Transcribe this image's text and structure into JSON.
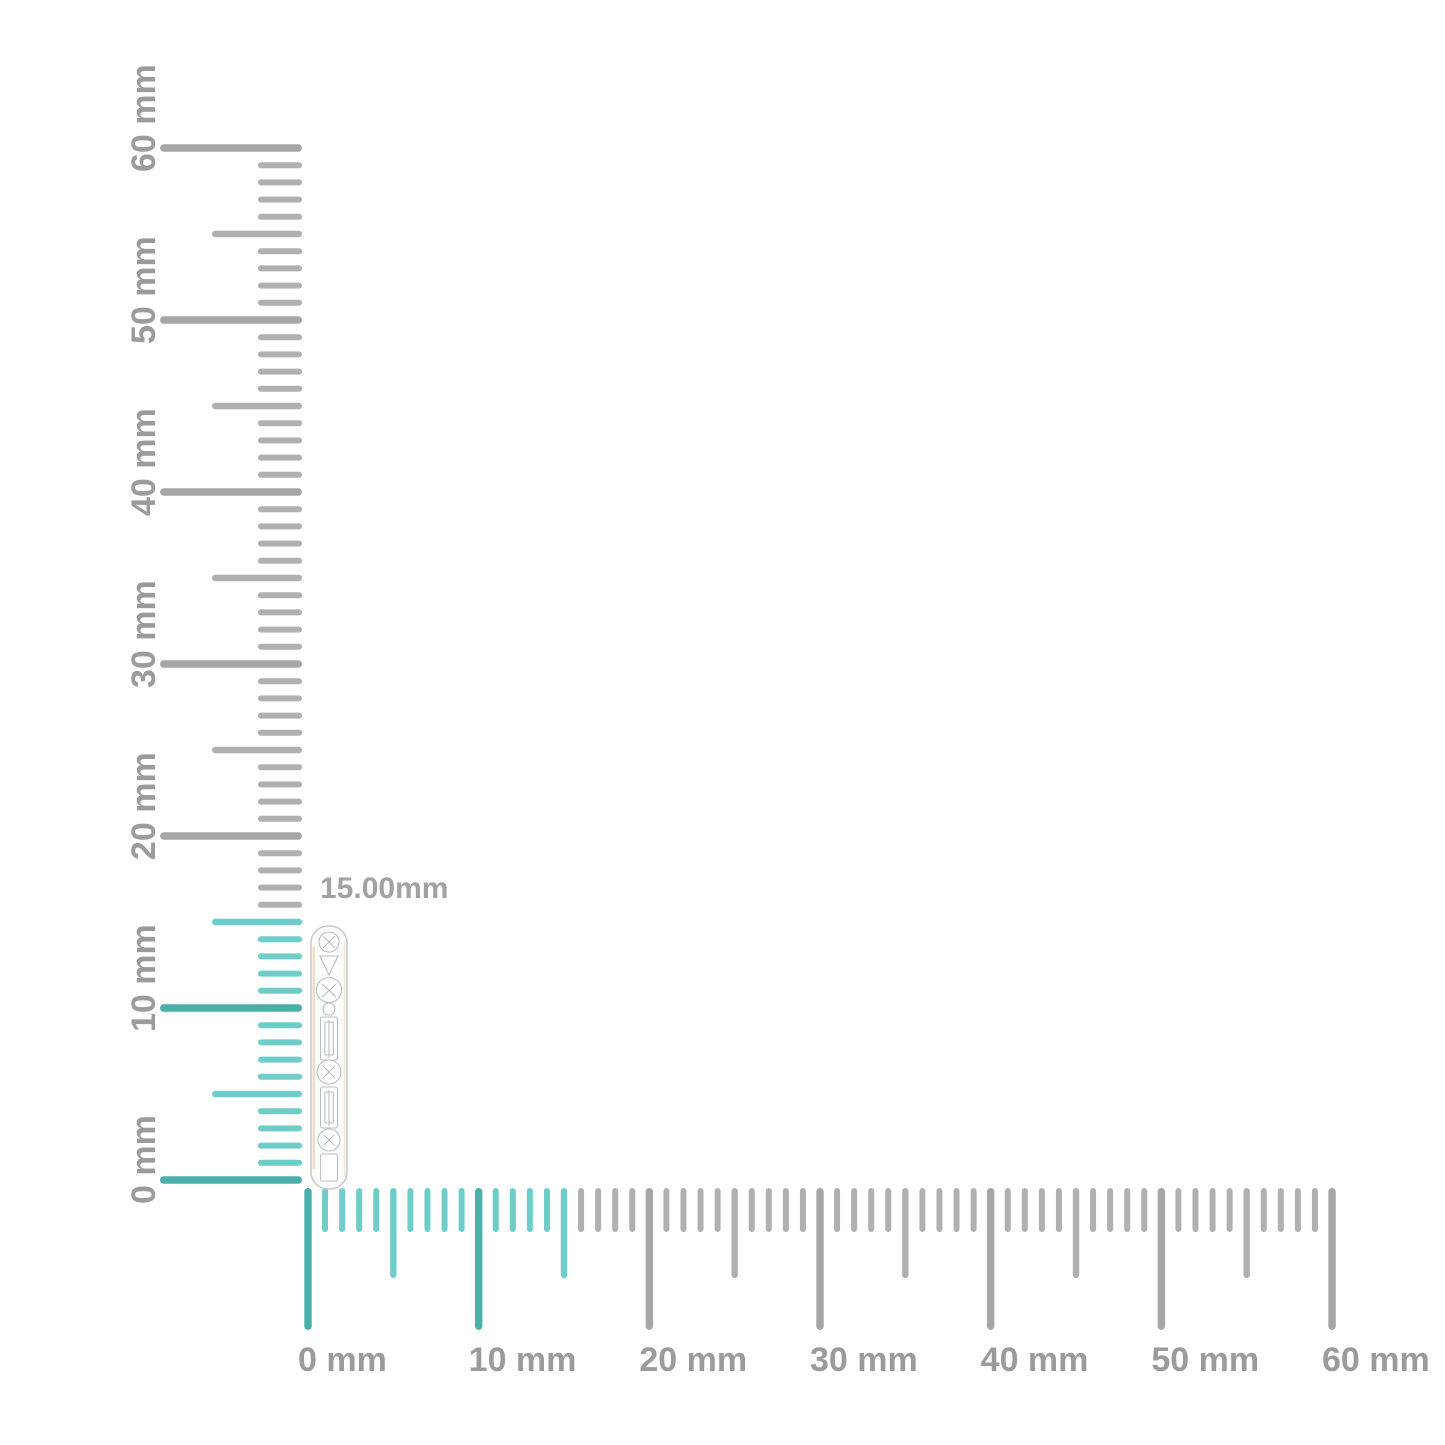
{
  "measurement": {
    "label": "15.00mm"
  },
  "rulers": {
    "vertical": {
      "unit": "mm",
      "min_mm": 0,
      "max_mm": 60,
      "tick_step_mm": 1,
      "mid_step_mm": 5,
      "major_step_mm": 10,
      "labels": [
        "0 mm",
        "10 mm",
        "20 mm",
        "30 mm",
        "40 mm",
        "50 mm",
        "60 mm"
      ],
      "highlight_to_mm": 15
    },
    "horizontal": {
      "unit": "mm",
      "min_mm": 0,
      "max_mm": 60,
      "tick_step_mm": 1,
      "mid_step_mm": 5,
      "major_step_mm": 10,
      "labels": [
        "0 mm",
        "10 mm",
        "20 mm",
        "30 mm",
        "40 mm",
        "50 mm",
        "60 mm"
      ],
      "highlight_to_mm": 15
    }
  },
  "colors": {
    "highlight_major": "#4bafaa",
    "highlight_minor": "#6ecdc8",
    "gray_major": "#a6a6a6",
    "gray_minor": "#b0b0b0",
    "label": "#9b9b9b",
    "measurement_label": "#a2a2a2",
    "background": "#ffffff"
  },
  "item": {
    "name": "diamond-earring-side-view"
  }
}
